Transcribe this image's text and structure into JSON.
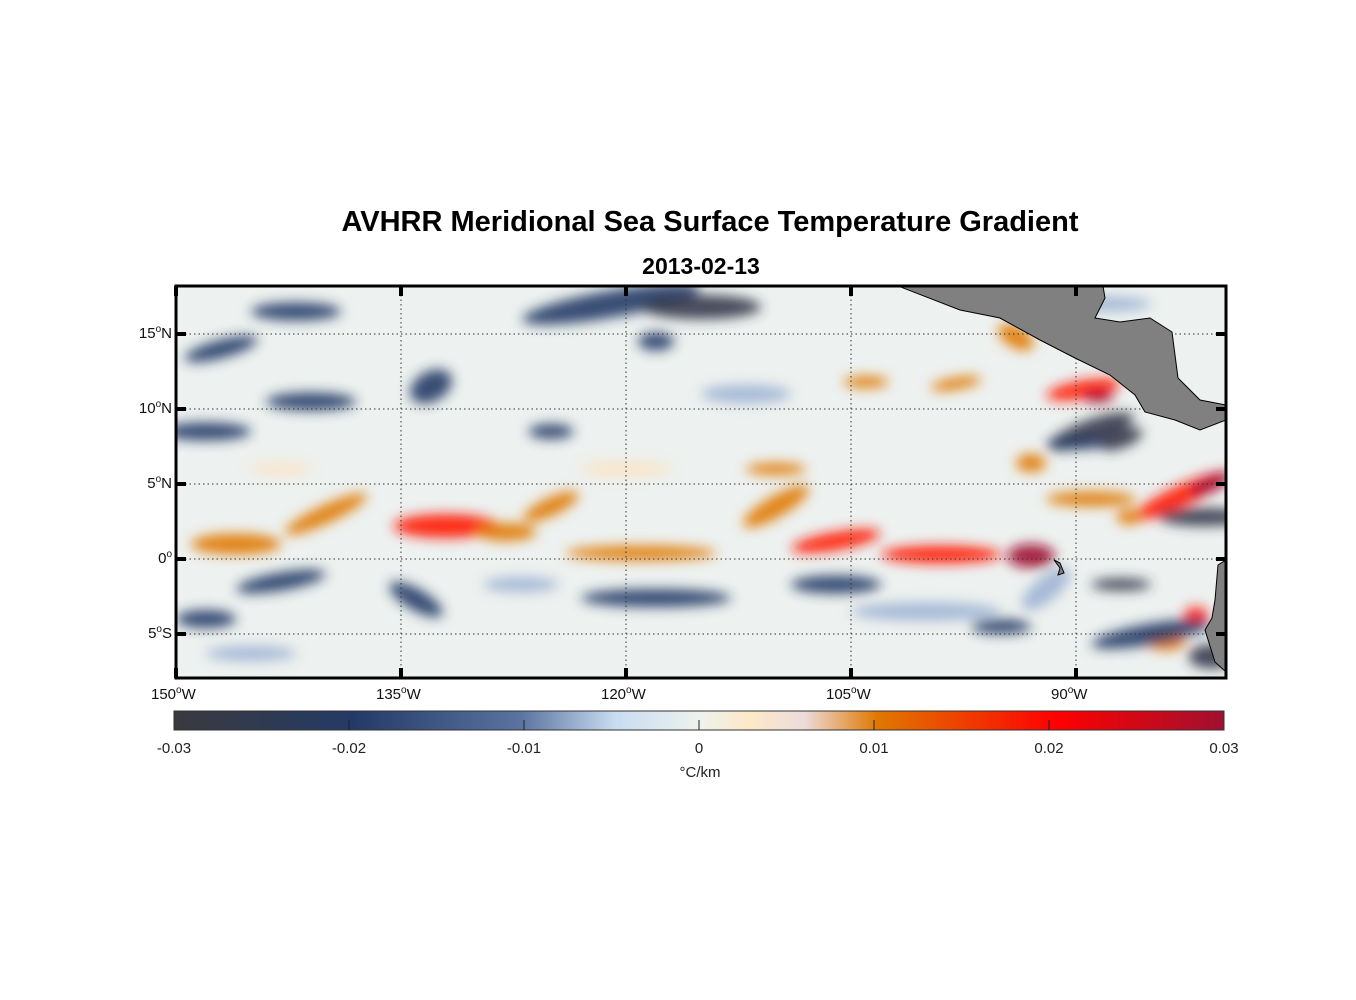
{
  "chart_data": {
    "type": "heatmap",
    "title": "AVHRR Meridional Sea Surface Temperature Gradient",
    "subtitle": "2013-02-13",
    "x_ticks": [
      "150",
      "135",
      "120",
      "105",
      "90"
    ],
    "x_suffix": "W",
    "y_ticks": [
      {
        "v": 15,
        "t": "15",
        "h": "N"
      },
      {
        "v": 10,
        "t": "10",
        "h": "N"
      },
      {
        "v": 5,
        "t": "5",
        "h": "N"
      },
      {
        "v": 0,
        "t": "0",
        "h": ""
      },
      {
        "v": -5,
        "t": "5",
        "h": "S"
      }
    ],
    "xlim_lon": [
      -150,
      -80
    ],
    "ylim_lat": [
      -8,
      18.2
    ],
    "colorbar": {
      "ticks": [
        "-0.03",
        "-0.02",
        "-0.01",
        "0",
        "0.01",
        "0.02",
        "0.03"
      ],
      "range": [
        -0.03,
        0.03
      ],
      "label": "°C/km"
    },
    "colors": {
      "land": "#808080",
      "neg_max": "#3a3a3e",
      "neg_mid": "#243a66",
      "zero": "#eef2ee",
      "pos_mid": "#e07800",
      "pos_high": "#ff0000",
      "pos_max": "#a01030"
    }
  }
}
